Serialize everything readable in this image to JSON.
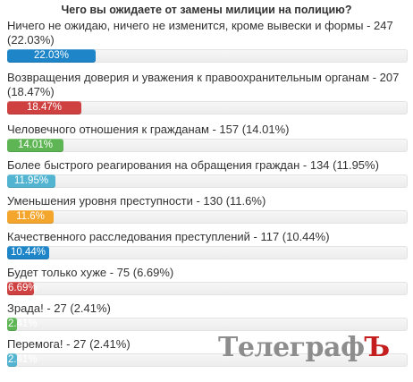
{
  "poll": {
    "title": "Чего вы ожидаете от замены милиции на полицию?"
  },
  "chart_data": {
    "type": "bar",
    "title": "Чего вы ожидаете от замены милиции на полицию?",
    "items": [
      {
        "label": "Ничего не ожидаю, ничего не изменится, кроме вывески и формы - 247 (22.03%)",
        "count": 247,
        "percent": 22.03,
        "bar_text": "22.03%",
        "color": "#1e85c8"
      },
      {
        "label": "Возвращения доверия и уважения к правоохранительным органам - 207 (18.47%)",
        "count": 207,
        "percent": 18.47,
        "bar_text": "18.47%",
        "color": "#cf4140"
      },
      {
        "label": "Человечного отношения к гражданам - 157 (14.01%)",
        "count": 157,
        "percent": 14.01,
        "bar_text": "14.01%",
        "color": "#5eb554"
      },
      {
        "label": "Более быстрого реагирования на обращения граждан - 134 (11.95%)",
        "count": 134,
        "percent": 11.95,
        "bar_text": "11.95%",
        "color": "#52b4d1"
      },
      {
        "label": "Уменьшения уровня преступности - 130 (11.6%)",
        "count": 130,
        "percent": 11.6,
        "bar_text": "11.6%",
        "color": "#f3a52c"
      },
      {
        "label": "Качественного расследования преступлений - 117 (10.44%)",
        "count": 117,
        "percent": 10.44,
        "bar_text": "10.44%",
        "color": "#1e85c8"
      },
      {
        "label": "Будет только хуже - 75 (6.69%)",
        "count": 75,
        "percent": 6.69,
        "bar_text": "6.69%",
        "color": "#cf4140"
      },
      {
        "label": "Зрада! - 27 (2.41%)",
        "count": 27,
        "percent": 2.41,
        "bar_text": "2.41%",
        "color": "#5eb554"
      },
      {
        "label": "Перемога! - 27 (2.41%)",
        "count": 27,
        "percent": 2.41,
        "bar_text": "2.41%",
        "color": "#52b4d1"
      }
    ],
    "xlim": [
      0,
      100
    ]
  },
  "watermark": {
    "main": "Телеграф",
    "accent": "Ъ"
  }
}
